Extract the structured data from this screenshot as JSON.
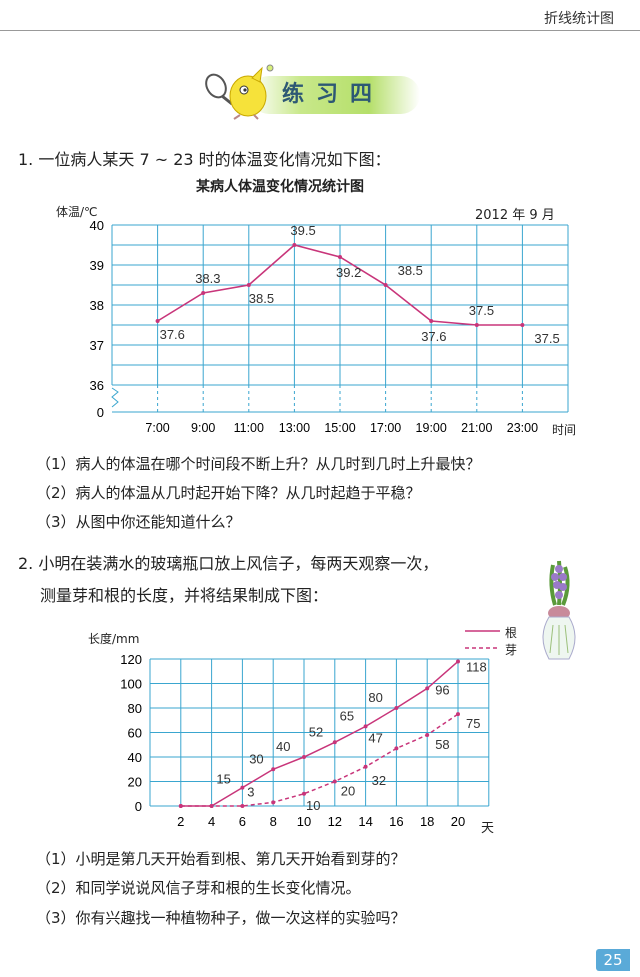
{
  "header": {
    "section": "折线统计图"
  },
  "title": "练习四",
  "q1": {
    "prompt": "1. 一位病人某天 7 ~ 23 时的体温变化情况如下图：",
    "subs": [
      "（1）病人的体温在哪个时间段不断上升？从几时到几时上升最快？",
      "（2）病人的体温从几时起开始下降？从几时起趋于平稳？",
      "（3）从图中你还能知道什么？"
    ]
  },
  "q2": {
    "prompt_line1": "2. 小明在装满水的玻璃瓶口放上风信子，每两天观察一次，",
    "prompt_line2": "测量芽和根的长度，并将结果制成下图：",
    "subs": [
      "（1）小明是第几天开始看到根、第几天开始看到芽的？",
      "（2）和同学说说风信子芽和根的生长变化情况。",
      "（3）你有兴趣找一种植物种子，做一次这样的实验吗？"
    ]
  },
  "page_number": "25",
  "colors": {
    "grid": "#3aa6cf",
    "line": "#c8357a",
    "title": "#2d5874",
    "page_badge": "#5aaad8"
  },
  "chart_data": [
    {
      "type": "line",
      "title": "某病人体温变化情况统计图",
      "subtitle": "2012 年 9 月",
      "ylabel": "体温/℃",
      "xlabel": "时间",
      "categories": [
        "7:00",
        "9:00",
        "11:00",
        "13:00",
        "15:00",
        "17:00",
        "19:00",
        "21:00",
        "23:00"
      ],
      "values": [
        37.6,
        38.3,
        38.5,
        39.5,
        39.2,
        38.5,
        37.6,
        37.5,
        37.5
      ],
      "y_ticks": [
        "40",
        "39",
        "38",
        "37",
        "36",
        "0"
      ],
      "ylim": [
        36,
        40
      ],
      "y_axis_break": true,
      "grid": true
    },
    {
      "type": "line",
      "ylabel": "长度/mm",
      "xlabel": "天",
      "categories": [
        "2",
        "4",
        "6",
        "8",
        "10",
        "12",
        "14",
        "16",
        "18",
        "20"
      ],
      "y_ticks": [
        "120",
        "100",
        "80",
        "60",
        "40",
        "20",
        "0"
      ],
      "ylim": [
        0,
        120
      ],
      "grid": true,
      "legend": "top-right",
      "series": [
        {
          "name": "根",
          "style": "solid",
          "values": [
            0,
            0,
            15,
            30,
            40,
            52,
            65,
            80,
            96,
            118
          ],
          "labels": [
            "",
            "",
            "15",
            "30",
            "40",
            "52",
            "65",
            "80",
            "96",
            "118"
          ]
        },
        {
          "name": "芽",
          "style": "dashed",
          "values": [
            0,
            0,
            0,
            3,
            10,
            20,
            32,
            47,
            58,
            75
          ],
          "labels": [
            "",
            "",
            "",
            "3",
            "10",
            "20",
            "32",
            "47",
            "58",
            "75"
          ]
        }
      ]
    }
  ]
}
